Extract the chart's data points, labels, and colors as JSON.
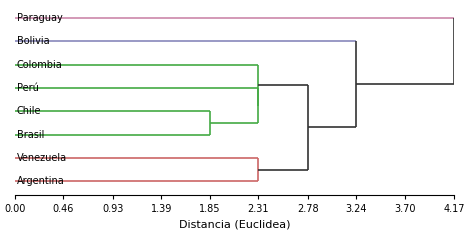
{
  "labels": [
    "Paraguay",
    "Bolivia",
    "Colombia",
    "Perú",
    "Chile",
    "Brasil",
    "Venezuela",
    "Argentina"
  ],
  "xlabel": "Distancia (Euclidea)",
  "xlim": [
    0.0,
    4.17
  ],
  "xticks": [
    0.0,
    0.46,
    0.93,
    1.39,
    1.85,
    2.31,
    2.78,
    3.24,
    3.7,
    4.17
  ],
  "background_color": "#ffffff",
  "colors": {
    "Paraguay": "#cc88aa",
    "Bolivia": "#8888bb",
    "Colombia": "#44aa44",
    "Perú": "#44aa44",
    "Chile": "#44aa44",
    "Brasil": "#44aa44",
    "Venezuela": "#cc6666",
    "Argentina": "#cc6666",
    "connector": "#333333"
  },
  "merges": {
    "chile_brasil": 1.85,
    "peru_chilebrasil": 2.31,
    "colombia_peruchilebrail": 2.31,
    "venezuela_argentina": 2.31,
    "green_red_cluster": 2.78,
    "bolivia_main": 3.24,
    "paraguay_all": 4.17
  },
  "label_fontsize": 7,
  "tick_fontsize": 7,
  "xlabel_fontsize": 8
}
